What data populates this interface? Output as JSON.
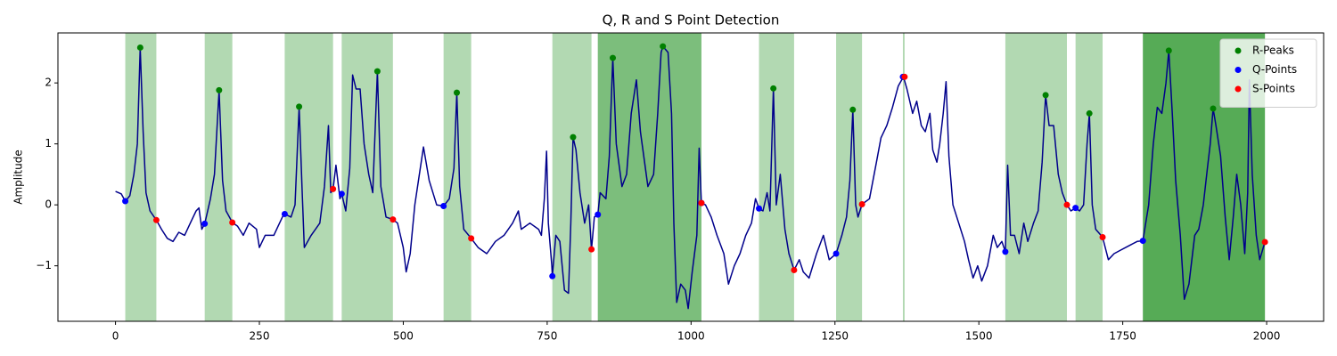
{
  "chart_data": {
    "type": "line",
    "title": "Q, R and S Point Detection",
    "y_label": "Amplitude",
    "xlim": [
      -100,
      2099
    ],
    "ylim": [
      -1.91,
      2.82
    ],
    "xticks": [
      0,
      250,
      500,
      750,
      1000,
      1250,
      1500,
      1750,
      2000
    ],
    "yticks": [
      {
        "value": -1,
        "label": "−1"
      },
      0,
      1,
      2
    ],
    "grid": false,
    "legend": "upper right",
    "spans": {
      "color": "#008000",
      "alpha": 0.3,
      "ranges": [
        [
          17,
          71
        ],
        [
          155,
          203
        ],
        [
          294,
          378
        ],
        [
          393,
          482
        ],
        [
          570,
          618
        ],
        [
          759,
          827
        ],
        [
          838,
          1018
        ],
        [
          838,
          1018
        ],
        [
          1118,
          1179
        ],
        [
          1252,
          1297
        ],
        [
          1368,
          1371
        ],
        [
          1546,
          1653
        ],
        [
          1668,
          1715
        ],
        [
          1785,
          1997
        ],
        [
          1785,
          1997
        ],
        [
          1785,
          1997
        ]
      ]
    },
    "series": [
      {
        "color": "#00008b",
        "x": [
          0,
          10,
          17,
          25,
          32,
          38,
          43,
          48,
          53,
          60,
          71,
          80,
          90,
          100,
          110,
          120,
          130,
          140,
          145,
          150,
          155,
          165,
          172,
          180,
          186,
          192,
          203,
          212,
          222,
          232,
          245,
          250,
          260,
          275,
          290,
          294,
          305,
          312,
          319,
          324,
          328,
          340,
          355,
          363,
          370,
          374,
          378,
          383,
          390,
          393,
          400,
          407,
          412,
          418,
          425,
          432,
          440,
          447,
          455,
          461,
          470,
          482,
          490,
          500,
          505,
          512,
          520,
          528,
          535,
          545,
          558,
          570,
          580,
          588,
          593,
          598,
          605,
          618,
          630,
          645,
          660,
          675,
          690,
          700,
          705,
          720,
          735,
          740,
          745,
          749,
          752,
          758,
          759,
          765,
          772,
          780,
          787,
          791,
          795,
          800,
          807,
          815,
          822,
          827,
          832,
          838,
          842,
          852,
          858,
          864,
          870,
          880,
          888,
          896,
          905,
          912,
          925,
          935,
          942,
          948,
          951,
          960,
          966,
          970,
          975,
          982,
          990,
          995,
          1002,
          1010,
          1014,
          1018,
          1025,
          1035,
          1045,
          1057,
          1065,
          1075,
          1085,
          1095,
          1105,
          1112,
          1118,
          1125,
          1132,
          1137,
          1143,
          1148,
          1155,
          1163,
          1170,
          1179,
          1188,
          1195,
          1205,
          1218,
          1230,
          1240,
          1252,
          1262,
          1270,
          1276,
          1281,
          1286,
          1290,
          1297,
          1310,
          1322,
          1330,
          1340,
          1350,
          1360,
          1369,
          1375,
          1385,
          1392,
          1400,
          1407,
          1415,
          1420,
          1427,
          1432,
          1438,
          1443,
          1448,
          1455,
          1465,
          1475,
          1482,
          1490,
          1498,
          1505,
          1515,
          1525,
          1532,
          1540,
          1546,
          1550,
          1555,
          1562,
          1570,
          1578,
          1585,
          1595,
          1603,
          1610,
          1616,
          1622,
          1630,
          1638,
          1645,
          1653,
          1660,
          1668,
          1675,
          1682,
          1688,
          1692,
          1697,
          1703,
          1715,
          1725,
          1735,
          1745,
          1755,
          1765,
          1775,
          1785,
          1795,
          1803,
          1810,
          1818,
          1825,
          1830,
          1836,
          1842,
          1850,
          1857,
          1865,
          1875,
          1882,
          1890,
          1897,
          1902,
          1907,
          1912,
          1920,
          1928,
          1935,
          1942,
          1948,
          1955,
          1962,
          1967,
          1970,
          1975,
          1982,
          1988,
          1997
        ],
        "values": [
          0.22,
          0.18,
          0.06,
          0.15,
          0.5,
          1.0,
          2.58,
          1.2,
          0.2,
          -0.1,
          -0.25,
          -0.4,
          -0.55,
          -0.6,
          -0.45,
          -0.5,
          -0.3,
          -0.1,
          -0.05,
          -0.4,
          -0.31,
          0.1,
          0.5,
          1.88,
          0.4,
          -0.1,
          -0.29,
          -0.35,
          -0.5,
          -0.3,
          -0.4,
          -0.7,
          -0.5,
          -0.5,
          -0.2,
          -0.15,
          -0.2,
          0.0,
          1.61,
          0.3,
          -0.7,
          -0.5,
          -0.3,
          0.3,
          1.3,
          0.2,
          0.26,
          0.65,
          0.1,
          0.18,
          -0.1,
          0.6,
          2.13,
          1.9,
          1.9,
          1.0,
          0.5,
          0.2,
          2.19,
          0.3,
          -0.2,
          -0.24,
          -0.3,
          -0.7,
          -1.1,
          -0.8,
          0.0,
          0.5,
          0.95,
          0.4,
          0.0,
          -0.02,
          0.1,
          0.6,
          1.84,
          0.3,
          -0.4,
          -0.55,
          -0.7,
          -0.8,
          -0.6,
          -0.5,
          -0.3,
          -0.1,
          -0.4,
          -0.3,
          -0.4,
          -0.5,
          0.1,
          0.88,
          -0.3,
          -1.0,
          -1.17,
          -0.5,
          -0.6,
          -1.4,
          -1.45,
          -0.3,
          1.11,
          0.9,
          0.2,
          -0.3,
          0.0,
          -0.73,
          -0.2,
          -0.16,
          0.2,
          0.1,
          0.8,
          2.41,
          1.0,
          0.3,
          0.5,
          1.5,
          2.05,
          1.2,
          0.3,
          0.5,
          1.5,
          2.5,
          2.6,
          2.5,
          1.5,
          -0.3,
          -1.6,
          -1.3,
          -1.4,
          -1.7,
          -1.1,
          -0.5,
          0.93,
          0.03,
          0.0,
          -0.2,
          -0.5,
          -0.8,
          -1.3,
          -1.0,
          -0.8,
          -0.5,
          -0.3,
          0.1,
          -0.06,
          -0.1,
          0.2,
          -0.1,
          1.91,
          0.0,
          0.5,
          -0.4,
          -0.8,
          -1.07,
          -0.9,
          -1.1,
          -1.2,
          -0.8,
          -0.5,
          -0.9,
          -0.8,
          -0.5,
          -0.2,
          0.4,
          1.56,
          0.0,
          -0.2,
          0.01,
          0.1,
          0.7,
          1.1,
          1.3,
          1.6,
          1.95,
          2.1,
          1.9,
          1.5,
          1.7,
          1.3,
          1.2,
          1.5,
          0.9,
          0.7,
          1.0,
          1.5,
          2.02,
          0.8,
          0.0,
          -0.3,
          -0.6,
          -0.9,
          -1.2,
          -1.0,
          -1.25,
          -1.0,
          -0.5,
          -0.7,
          -0.6,
          -0.77,
          0.65,
          -0.5,
          -0.5,
          -0.8,
          -0.3,
          -0.6,
          -0.3,
          -0.1,
          0.7,
          1.8,
          1.3,
          1.3,
          0.5,
          0.2,
          0.0,
          -0.1,
          -0.05,
          -0.1,
          0.0,
          1.0,
          1.5,
          0.0,
          -0.4,
          -0.53,
          -0.9,
          -0.8,
          -0.75,
          -0.7,
          -0.65,
          -0.6,
          -0.59,
          0.0,
          1.0,
          1.6,
          1.5,
          2.0,
          2.53,
          1.5,
          0.4,
          -0.5,
          -1.55,
          -1.3,
          -0.5,
          -0.4,
          0.0,
          0.6,
          1.0,
          1.58,
          1.3,
          0.8,
          -0.2,
          -0.9,
          -0.2,
          0.5,
          0.0,
          -0.8,
          0.2,
          2.05,
          0.5,
          -0.5,
          -0.9,
          -0.61
        ]
      }
    ],
    "points": [
      {
        "name": "R-Peaks",
        "color": "#008000",
        "x": [
          43,
          180,
          319,
          455,
          593,
          795,
          864,
          951,
          1143,
          1281,
          1369,
          1616,
          1692,
          1830,
          1907
        ],
        "values": [
          2.58,
          1.88,
          1.61,
          2.19,
          1.84,
          1.11,
          2.41,
          2.6,
          1.91,
          1.56,
          2.1,
          1.8,
          1.5,
          2.53,
          1.58
        ]
      },
      {
        "name": "Q-Points",
        "color": "#0000ff",
        "x": [
          17,
          155,
          294,
          393,
          570,
          759,
          838,
          1018,
          1118,
          1252,
          1368,
          1546,
          1668,
          1785
        ],
        "values": [
          0.06,
          -0.31,
          -0.15,
          0.18,
          -0.02,
          -1.17,
          -0.16,
          0.03,
          -0.06,
          -0.8,
          2.1,
          -0.77,
          -0.05,
          -0.59
        ]
      },
      {
        "name": "S-Points",
        "color": "#ff0000",
        "x": [
          71,
          203,
          378,
          482,
          618,
          827,
          1018,
          1179,
          1297,
          1371,
          1653,
          1715,
          1997
        ],
        "values": [
          -0.25,
          -0.29,
          0.26,
          -0.24,
          -0.55,
          -0.73,
          0.03,
          -1.07,
          0.01,
          2.1,
          0.0,
          -0.53,
          -0.61
        ]
      }
    ]
  }
}
